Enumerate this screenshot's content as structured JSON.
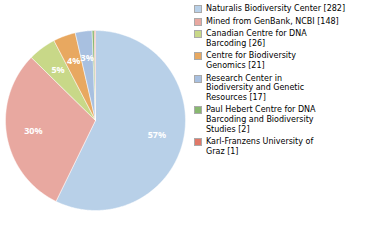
{
  "chart_data": {
    "type": "pie",
    "categories": [
      "Naturalis Biodiversity Center [282]",
      "Mined from GenBank, NCBI [148]",
      "Canadian Centre for DNA\nBarcoding [26]",
      "Centre for Biodiversity\nGenomics [21]",
      "Research Center in\nBiodiversity and Genetic\nResources [17]",
      "Paul Hebert Centre for DNA\nBarcoding and Biodiversity\nStudies [2]",
      "Karl-Franzens University of\nGraz [1]"
    ],
    "values": [
      57,
      30,
      5,
      4,
      3,
      0.4,
      0.2
    ],
    "value_labels": [
      "57%",
      "30%",
      "5%",
      "4%",
      "3%",
      null,
      null
    ],
    "colors": [
      "#b8d0e8",
      "#e8a8a0",
      "#c8d888",
      "#e8a860",
      "#a8c0e0",
      "#88b870",
      "#e07868"
    ],
    "data_labels": true,
    "legend": "right"
  }
}
